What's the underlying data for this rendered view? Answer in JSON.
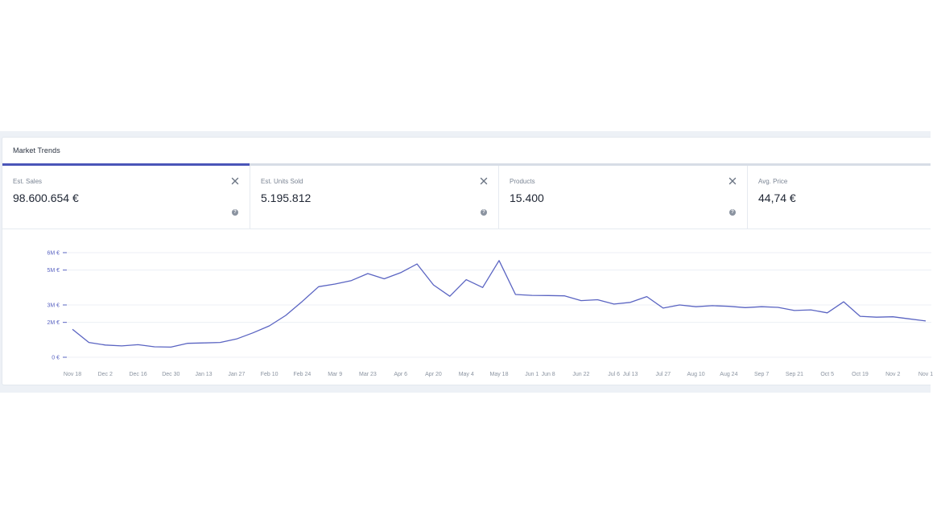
{
  "card": {
    "title": "Market Trends"
  },
  "metrics": [
    {
      "label": "Est. Sales",
      "value": "98.600.654 €",
      "closable": true,
      "help": true
    },
    {
      "label": "Est. Units Sold",
      "value": "5.195.812",
      "closable": true,
      "help": true
    },
    {
      "label": "Products",
      "value": "15.400",
      "closable": true,
      "help": true
    },
    {
      "label": "Avg. Price",
      "value": "44,74 €",
      "closable": false,
      "help": false
    }
  ],
  "icons": {
    "close": "close-icon",
    "help": "question-mark-icon"
  },
  "colors": {
    "accent": "#4a55b8",
    "line": "#5a64c2",
    "band": "#edf1f6"
  },
  "chart_data": {
    "type": "line",
    "series": [
      {
        "values": [
          1.6,
          0.85,
          0.7,
          0.65,
          0.72,
          0.6,
          0.58,
          0.8,
          0.82,
          0.85,
          1.05,
          1.4,
          1.8,
          2.4,
          3.2,
          4.05,
          4.2,
          4.4,
          4.8,
          4.5,
          4.85,
          5.35,
          4.15,
          3.5,
          4.45,
          4.0,
          5.55,
          3.6,
          3.55,
          3.54,
          3.52,
          3.25,
          3.3,
          3.05,
          3.15,
          3.48,
          2.82,
          3.0,
          2.9,
          2.96,
          2.92,
          2.85,
          2.9,
          2.86,
          2.68,
          2.72,
          2.55,
          3.18,
          2.35,
          2.3,
          2.32,
          2.2,
          2.08
        ]
      }
    ],
    "x_tick_labels": [
      "Nov 18",
      "Dec 2",
      "Dec 16",
      "Dec 30",
      "Jan 13",
      "Jan 27",
      "Feb 10",
      "Feb 24",
      "Mar 9",
      "Mar 23",
      "Apr 6",
      "Apr 20",
      "May 4",
      "May 18",
      "Jun 1",
      "Jun 8",
      "Jun 22",
      "Jul 6",
      "Jul 13",
      "Jul 27",
      "Aug 10",
      "Aug 24",
      "Sep 7",
      "Sep 21",
      "Oct 5",
      "Oct 19",
      "Nov 2",
      "Nov 1"
    ],
    "x_tick_index": [
      0,
      2,
      4,
      6,
      8,
      10,
      12,
      14,
      16,
      18,
      20,
      22,
      24,
      26,
      28,
      29,
      31,
      33,
      34,
      36,
      38,
      40,
      42,
      44,
      46,
      48,
      50,
      52
    ],
    "y_tick_labels": [
      "0 €",
      "2M €",
      "3M €",
      "5M €",
      "6M €"
    ],
    "y_tick_values": [
      0,
      2,
      3,
      5,
      6
    ],
    "ylim": [
      0,
      6
    ],
    "grid": true,
    "legend": false
  }
}
